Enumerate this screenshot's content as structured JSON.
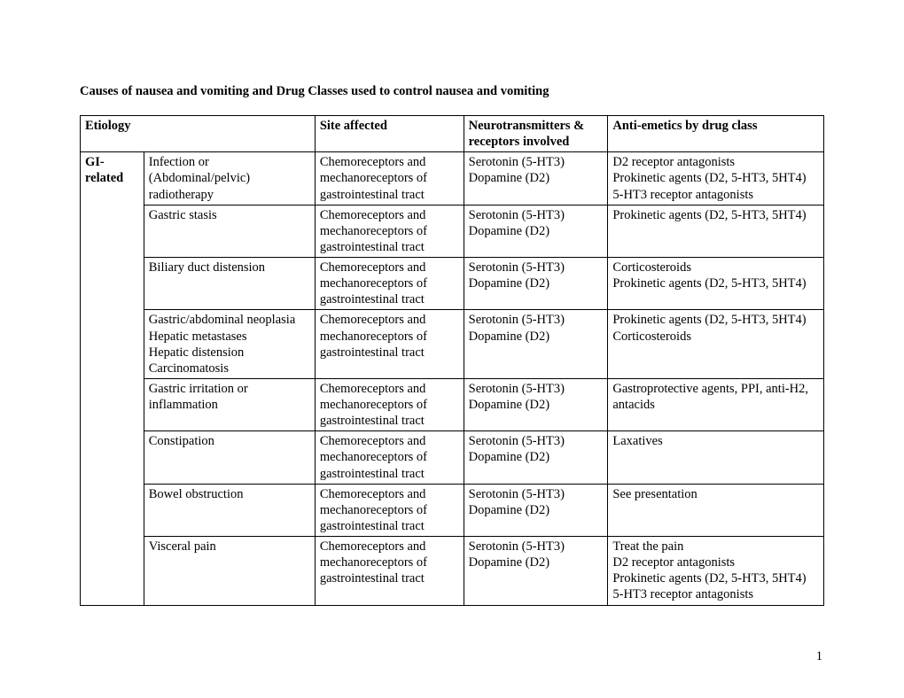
{
  "title": "Causes of nausea and vomiting and Drug Classes used to control nausea and vomiting",
  "headers": {
    "etiology": "Etiology",
    "site": "Site affected",
    "neuro": "Neurotransmitters & receptors involved",
    "drugs": "Anti-emetics by drug class"
  },
  "group_label": "GI-\nrelated",
  "rows": [
    {
      "sub": "Infection or\n(Abdominal/pelvic) radiotherapy",
      "site": "Chemoreceptors and mechanoreceptors of gastrointestinal tract",
      "neuro": "Serotonin (5-HT3)\nDopamine (D2)",
      "drugs": "D2 receptor antagonists\nProkinetic agents (D2, 5-HT3, 5HT4)\n5-HT3 receptor antagonists"
    },
    {
      "sub": "Gastric stasis",
      "site": "Chemoreceptors and mechanoreceptors of gastrointestinal tract",
      "neuro": "Serotonin (5-HT3)\nDopamine (D2)",
      "drugs": "Prokinetic agents (D2, 5-HT3, 5HT4)"
    },
    {
      "sub": "Biliary duct distension",
      "site": "Chemoreceptors and mechanoreceptors of gastrointestinal tract",
      "neuro": "Serotonin (5-HT3)\nDopamine (D2)",
      "drugs": "Corticosteroids\nProkinetic agents (D2, 5-HT3, 5HT4)"
    },
    {
      "sub": "Gastric/abdominal neoplasia\nHepatic metastases\nHepatic distension\nCarcinomatosis",
      "site": "Chemoreceptors and mechanoreceptors of gastrointestinal tract",
      "neuro": "Serotonin (5-HT3)\nDopamine (D2)",
      "drugs": "Prokinetic agents (D2, 5-HT3, 5HT4)\nCorticosteroids"
    },
    {
      "sub": "Gastric irritation or inflammation",
      "site": "Chemoreceptors and mechanoreceptors of gastrointestinal tract",
      "neuro": "Serotonin (5-HT3)\nDopamine (D2)",
      "drugs": "Gastroprotective agents, PPI, anti-H2, antacids"
    },
    {
      "sub": "Constipation",
      "site": "Chemoreceptors and mechanoreceptors of gastrointestinal tract",
      "neuro": "Serotonin (5-HT3)\nDopamine (D2)",
      "drugs": "Laxatives"
    },
    {
      "sub": "Bowel obstruction",
      "site": "Chemoreceptors and mechanoreceptors of gastrointestinal tract",
      "neuro": "Serotonin (5-HT3)\nDopamine (D2)",
      "drugs": "See presentation"
    },
    {
      "sub": "Visceral pain",
      "site": "Chemoreceptors and mechanoreceptors of gastrointestinal tract",
      "neuro": "Serotonin (5-HT3)\nDopamine (D2)",
      "drugs": "Treat the pain\nD2 receptor antagonists\nProkinetic agents (D2, 5-HT3, 5HT4)\n5-HT3 receptor antagonists"
    }
  ],
  "page_number": "1"
}
